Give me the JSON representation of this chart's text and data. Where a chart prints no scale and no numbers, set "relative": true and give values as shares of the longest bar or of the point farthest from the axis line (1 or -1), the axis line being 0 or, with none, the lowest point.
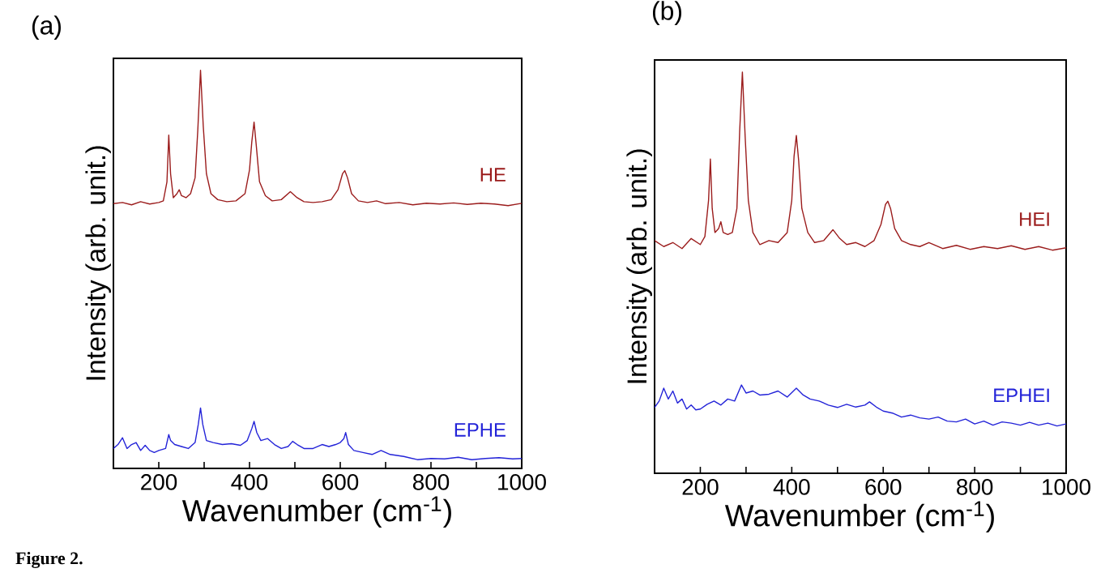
{
  "chart_data": [
    {
      "type": "line",
      "title": "(a)",
      "xlabel": "Wavenumber (cm$^{-1}$)",
      "ylabel": "Intensity (arb. unit.)",
      "relative": true,
      "xlim": [
        100,
        1000
      ],
      "xticks": [
        {
          "value": 100,
          "label": null
        },
        200,
        {
          "value": 300,
          "label": null
        },
        400,
        {
          "value": 500,
          "label": null
        },
        600,
        {
          "value": 700,
          "label": null
        },
        800,
        {
          "value": 900,
          "label": null
        },
        1000
      ],
      "annotations": [
        "Figure 2."
      ],
      "series": [
        {
          "name": "HE",
          "color": "#9b1c1c",
          "x": [
            100,
            120,
            140,
            160,
            180,
            200,
            210,
            218,
            222,
            226,
            232,
            240,
            245,
            250,
            260,
            270,
            280,
            286,
            292,
            298,
            305,
            315,
            330,
            350,
            370,
            390,
            400,
            405,
            410,
            415,
            422,
            435,
            450,
            470,
            490,
            505,
            520,
            540,
            560,
            580,
            595,
            605,
            610,
            616,
            625,
            640,
            660,
            680,
            700,
            730,
            760,
            790,
            820,
            850,
            880,
            910,
            940,
            970,
            1000
          ],
          "values": [
            0.665,
            0.668,
            0.662,
            0.67,
            0.664,
            0.668,
            0.672,
            0.72,
            0.837,
            0.74,
            0.68,
            0.69,
            0.7,
            0.685,
            0.68,
            0.69,
            0.73,
            0.85,
            1.0,
            0.86,
            0.74,
            0.69,
            0.675,
            0.67,
            0.672,
            0.69,
            0.75,
            0.82,
            0.87,
            0.81,
            0.72,
            0.685,
            0.672,
            0.675,
            0.695,
            0.68,
            0.67,
            0.668,
            0.67,
            0.675,
            0.7,
            0.74,
            0.748,
            0.73,
            0.69,
            0.672,
            0.668,
            0.672,
            0.665,
            0.668,
            0.662,
            0.666,
            0.664,
            0.667,
            0.663,
            0.666,
            0.664,
            0.66,
            0.666
          ]
        },
        {
          "name": "EPHE",
          "color": "#2323d8",
          "x": [
            100,
            110,
            120,
            130,
            140,
            150,
            160,
            170,
            180,
            190,
            200,
            215,
            222,
            226,
            235,
            250,
            265,
            280,
            287,
            292,
            297,
            305,
            320,
            340,
            360,
            380,
            395,
            405,
            410,
            416,
            425,
            440,
            455,
            470,
            485,
            495,
            505,
            520,
            540,
            560,
            575,
            590,
            600,
            608,
            612,
            618,
            630,
            650,
            670,
            690,
            710,
            740,
            770,
            800,
            830,
            860,
            890,
            920,
            950,
            980,
            1000
          ],
          "values": [
            0.05,
            0.06,
            0.077,
            0.05,
            0.06,
            0.065,
            0.045,
            0.058,
            0.045,
            0.04,
            0.045,
            0.05,
            0.085,
            0.07,
            0.06,
            0.055,
            0.05,
            0.065,
            0.11,
            0.152,
            0.11,
            0.07,
            0.065,
            0.06,
            0.062,
            0.058,
            0.07,
            0.1,
            0.118,
            0.09,
            0.07,
            0.075,
            0.06,
            0.05,
            0.055,
            0.068,
            0.06,
            0.05,
            0.05,
            0.06,
            0.055,
            0.06,
            0.065,
            0.075,
            0.09,
            0.06,
            0.045,
            0.04,
            0.035,
            0.045,
            0.035,
            0.03,
            0.022,
            0.025,
            0.024,
            0.028,
            0.022,
            0.025,
            0.027,
            0.024,
            0.025
          ]
        }
      ]
    },
    {
      "type": "line",
      "title": "(b)",
      "xlabel": "Wavenumber (cm$^{-1}$)",
      "ylabel": "Intensity (arb. unit.)",
      "relative": true,
      "xlim": [
        100,
        1000
      ],
      "xticks": [
        {
          "value": 100,
          "label": null
        },
        200,
        {
          "value": 300,
          "label": null
        },
        400,
        {
          "value": 500,
          "label": null
        },
        600,
        {
          "value": 700,
          "label": null
        },
        800,
        {
          "value": 900,
          "label": null
        },
        1000
      ],
      "series": [
        {
          "name": "HEI",
          "color": "#9b1c1c",
          "x": [
            100,
            120,
            140,
            160,
            180,
            200,
            210,
            218,
            222,
            226,
            232,
            240,
            245,
            250,
            260,
            270,
            280,
            286,
            292,
            298,
            305,
            315,
            330,
            350,
            370,
            390,
            400,
            405,
            410,
            415,
            422,
            435,
            450,
            470,
            490,
            505,
            520,
            540,
            560,
            580,
            595,
            605,
            610,
            616,
            625,
            640,
            660,
            680,
            700,
            730,
            760,
            790,
            820,
            850,
            880,
            910,
            940,
            970,
            1000
          ],
          "values": [
            0.58,
            0.565,
            0.575,
            0.56,
            0.585,
            0.57,
            0.59,
            0.68,
            0.783,
            0.66,
            0.6,
            0.61,
            0.627,
            0.6,
            0.595,
            0.6,
            0.66,
            0.85,
            1.0,
            0.84,
            0.68,
            0.6,
            0.57,
            0.58,
            0.575,
            0.6,
            0.68,
            0.79,
            0.842,
            0.78,
            0.66,
            0.6,
            0.575,
            0.58,
            0.607,
            0.585,
            0.57,
            0.575,
            0.565,
            0.58,
            0.62,
            0.67,
            0.678,
            0.66,
            0.61,
            0.58,
            0.57,
            0.565,
            0.575,
            0.56,
            0.568,
            0.558,
            0.565,
            0.56,
            0.567,
            0.558,
            0.565,
            0.556,
            0.562
          ]
        },
        {
          "name": "EPHEI",
          "color": "#2323d8",
          "x": [
            100,
            110,
            120,
            130,
            140,
            150,
            160,
            170,
            180,
            190,
            200,
            215,
            230,
            245,
            260,
            275,
            290,
            300,
            315,
            330,
            350,
            370,
            390,
            410,
            425,
            440,
            460,
            480,
            500,
            520,
            540,
            560,
            570,
            585,
            600,
            620,
            640,
            660,
            680,
            700,
            720,
            740,
            760,
            780,
            800,
            820,
            840,
            860,
            880,
            900,
            920,
            940,
            960,
            980,
            1000
          ],
          "values": [
            0.164,
            0.18,
            0.212,
            0.185,
            0.205,
            0.175,
            0.185,
            0.16,
            0.17,
            0.158,
            0.16,
            0.172,
            0.18,
            0.17,
            0.185,
            0.18,
            0.22,
            0.2,
            0.205,
            0.195,
            0.197,
            0.205,
            0.19,
            0.212,
            0.195,
            0.185,
            0.18,
            0.17,
            0.164,
            0.172,
            0.165,
            0.17,
            0.178,
            0.165,
            0.155,
            0.15,
            0.14,
            0.145,
            0.138,
            0.135,
            0.14,
            0.13,
            0.128,
            0.135,
            0.123,
            0.13,
            0.12,
            0.128,
            0.125,
            0.12,
            0.127,
            0.12,
            0.125,
            0.118,
            0.123
          ]
        }
      ]
    }
  ]
}
